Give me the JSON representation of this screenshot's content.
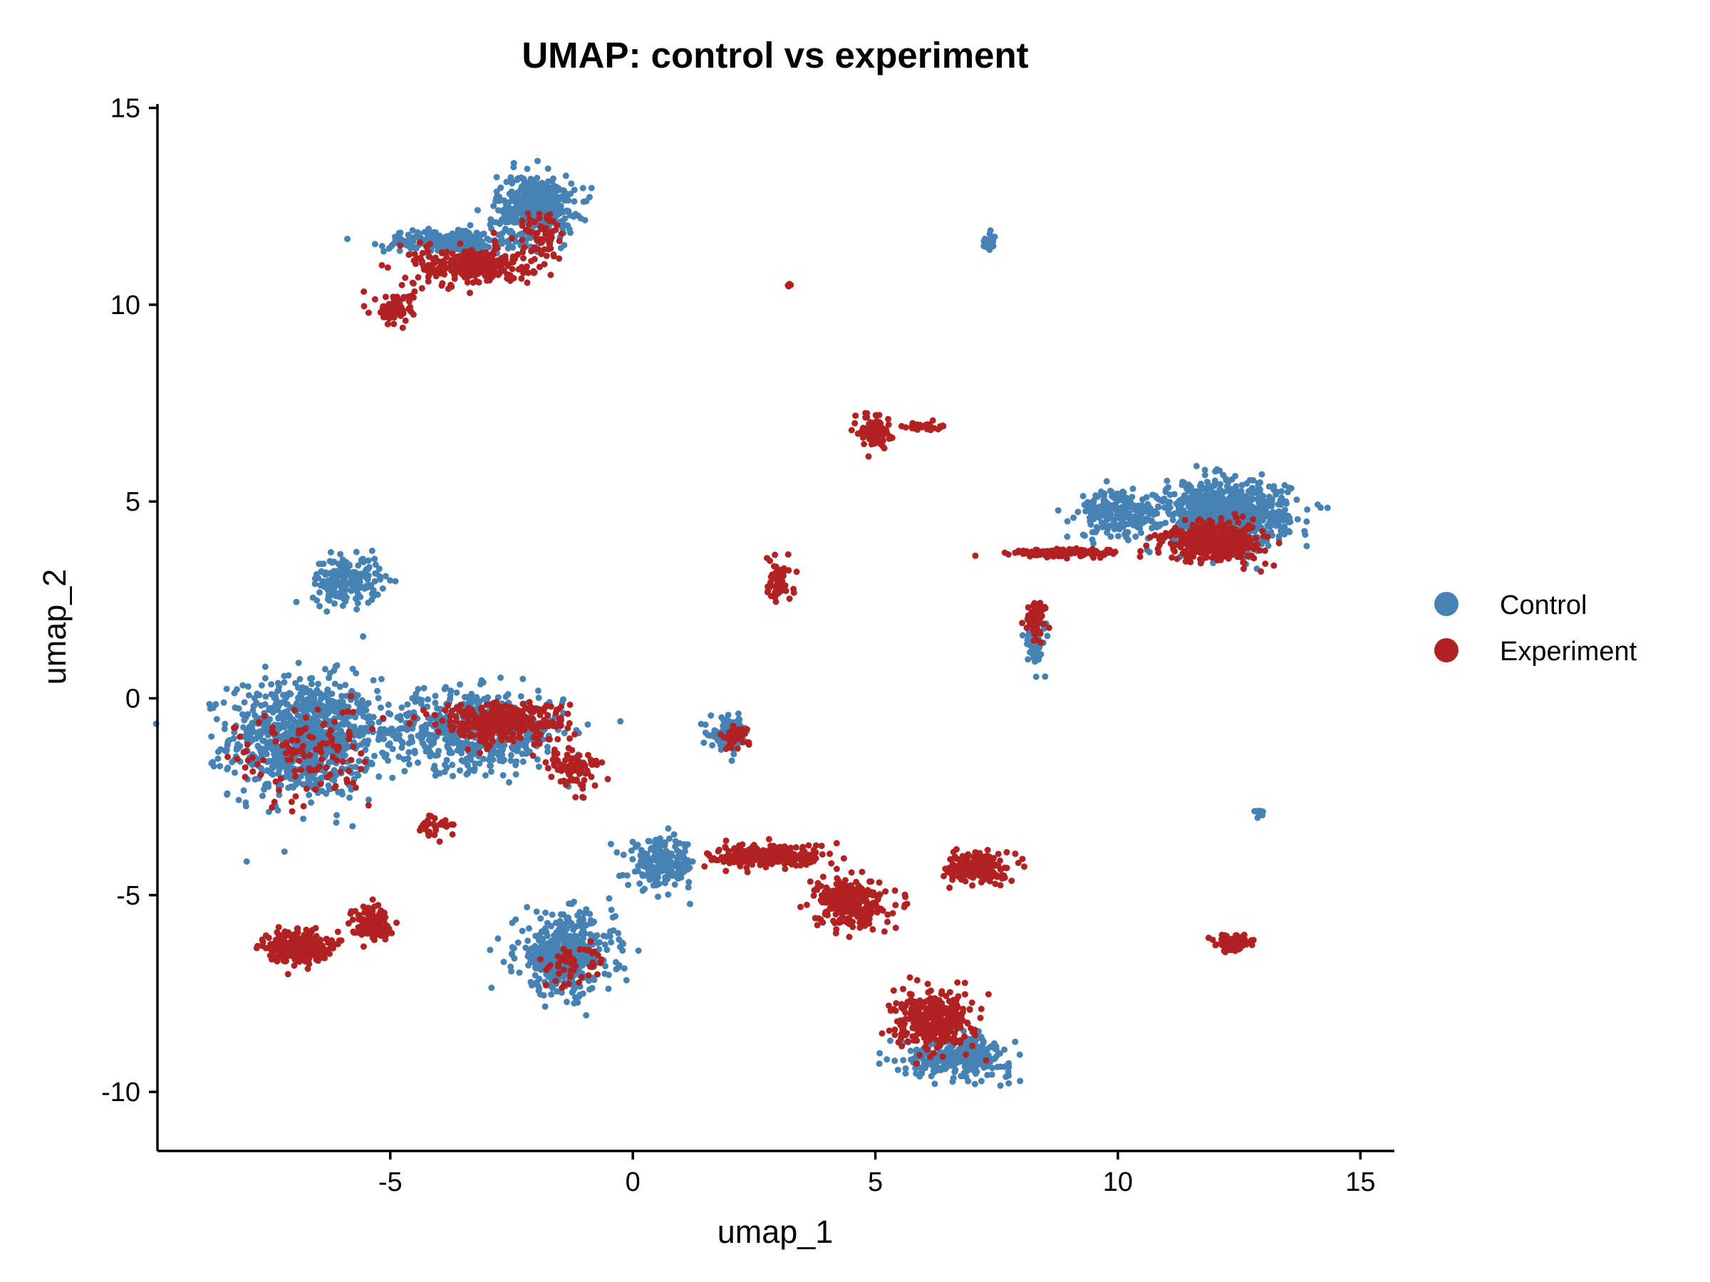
{
  "chart_data": {
    "type": "scatter",
    "title": "UMAP: control vs experiment",
    "xlabel": "umap_1",
    "ylabel": "umap_2",
    "xlim": [
      -9.8,
      15.7
    ],
    "ylim": [
      -11.5,
      15.1
    ],
    "x_ticks": [
      -5,
      0,
      5,
      10,
      15
    ],
    "y_ticks": [
      -10,
      -5,
      0,
      5,
      10,
      15
    ],
    "x_tick_labels": [
      "-5",
      "0",
      "5",
      "10",
      "15"
    ],
    "y_tick_labels": [
      "-10",
      "-5",
      "0",
      "5",
      "10",
      "15"
    ],
    "grid": false,
    "legend_position": "right",
    "series": [
      {
        "name": "Control",
        "color": "#4682B4",
        "clusters": [
          {
            "center": [
              -6.8,
              -1.0
            ],
            "spread": [
              1.5,
              1.5
            ],
            "n": 900
          },
          {
            "center": [
              -3.3,
              -0.8
            ],
            "spread": [
              1.9,
              1.0
            ],
            "n": 600
          },
          {
            "center": [
              -5.9,
              3.0
            ],
            "spread": [
              0.7,
              0.6
            ],
            "n": 200
          },
          {
            "center": [
              -2.0,
              12.5
            ],
            "spread": [
              0.8,
              0.8
            ],
            "n": 450
          },
          {
            "center": [
              -3.8,
              11.6
            ],
            "spread": [
              1.3,
              0.3
            ],
            "n": 250
          },
          {
            "center": [
              -1.4,
              -6.5
            ],
            "spread": [
              1.0,
              1.0
            ],
            "n": 450
          },
          {
            "center": [
              0.6,
              -4.2
            ],
            "spread": [
              0.7,
              0.6
            ],
            "n": 200
          },
          {
            "center": [
              2.0,
              -0.9
            ],
            "spread": [
              0.4,
              0.4
            ],
            "n": 120
          },
          {
            "center": [
              12.2,
              4.7
            ],
            "spread": [
              1.3,
              0.8
            ],
            "n": 800
          },
          {
            "center": [
              10.0,
              4.7
            ],
            "spread": [
              0.8,
              0.6
            ],
            "n": 200
          },
          {
            "center": [
              6.7,
              -9.1
            ],
            "spread": [
              1.1,
              0.5
            ],
            "n": 300
          },
          {
            "center": [
              8.3,
              1.5
            ],
            "spread": [
              0.2,
              0.7
            ],
            "n": 60
          },
          {
            "center": [
              7.3,
              11.6
            ],
            "spread": [
              0.15,
              0.25
            ],
            "n": 20
          },
          {
            "center": [
              12.9,
              -2.9
            ],
            "spread": [
              0.1,
              0.1
            ],
            "n": 8
          }
        ]
      },
      {
        "name": "Experiment",
        "color": "#B22222",
        "clusters": [
          {
            "center": [
              -3.3,
              11.0
            ],
            "spread": [
              1.2,
              0.5
            ],
            "n": 280
          },
          {
            "center": [
              -4.9,
              9.9
            ],
            "spread": [
              0.4,
              0.4
            ],
            "n": 80
          },
          {
            "center": [
              -1.8,
              11.7
            ],
            "spread": [
              0.4,
              0.8
            ],
            "n": 60
          },
          {
            "center": [
              -6.9,
              -6.3
            ],
            "spread": [
              0.6,
              0.4
            ],
            "n": 300
          },
          {
            "center": [
              -5.4,
              -5.7
            ],
            "spread": [
              0.4,
              0.4
            ],
            "n": 120
          },
          {
            "center": [
              -2.7,
              -0.6
            ],
            "spread": [
              1.3,
              0.5
            ],
            "n": 350
          },
          {
            "center": [
              -6.8,
              -1.5
            ],
            "spread": [
              1.4,
              1.3
            ],
            "n": 120
          },
          {
            "center": [
              2.8,
              -4.0
            ],
            "spread": [
              1.2,
              0.3
            ],
            "n": 250
          },
          {
            "center": [
              4.5,
              -5.2
            ],
            "spread": [
              0.7,
              0.6
            ],
            "n": 300
          },
          {
            "center": [
              6.2,
              -8.2
            ],
            "spread": [
              0.8,
              0.7
            ],
            "n": 350
          },
          {
            "center": [
              7.1,
              -4.3
            ],
            "spread": [
              0.6,
              0.4
            ],
            "n": 180
          },
          {
            "center": [
              5.0,
              6.8
            ],
            "spread": [
              0.3,
              0.4
            ],
            "n": 100
          },
          {
            "center": [
              6.0,
              6.9
            ],
            "spread": [
              0.4,
              0.1
            ],
            "n": 40
          },
          {
            "center": [
              3.0,
              3.0
            ],
            "spread": [
              0.3,
              0.5
            ],
            "n": 60
          },
          {
            "center": [
              12.0,
              4.0
            ],
            "spread": [
              1.0,
              0.5
            ],
            "n": 400
          },
          {
            "center": [
              9.0,
              3.7
            ],
            "spread": [
              1.2,
              0.1
            ],
            "n": 120
          },
          {
            "center": [
              8.3,
              1.9
            ],
            "spread": [
              0.2,
              0.6
            ],
            "n": 60
          },
          {
            "center": [
              12.4,
              -6.2
            ],
            "spread": [
              0.4,
              0.2
            ],
            "n": 70
          },
          {
            "center": [
              3.2,
              10.5
            ],
            "spread": [
              0.05,
              0.05
            ],
            "n": 6
          },
          {
            "center": [
              -1.2,
              -1.8
            ],
            "spread": [
              0.6,
              0.6
            ],
            "n": 80
          },
          {
            "center": [
              -4.1,
              -3.2
            ],
            "spread": [
              0.3,
              0.3
            ],
            "n": 30
          },
          {
            "center": [
              -1.3,
              -6.8
            ],
            "spread": [
              0.7,
              0.6
            ],
            "n": 50
          },
          {
            "center": [
              2.1,
              -1.0
            ],
            "spread": [
              0.3,
              0.3
            ],
            "n": 40
          }
        ]
      }
    ]
  }
}
